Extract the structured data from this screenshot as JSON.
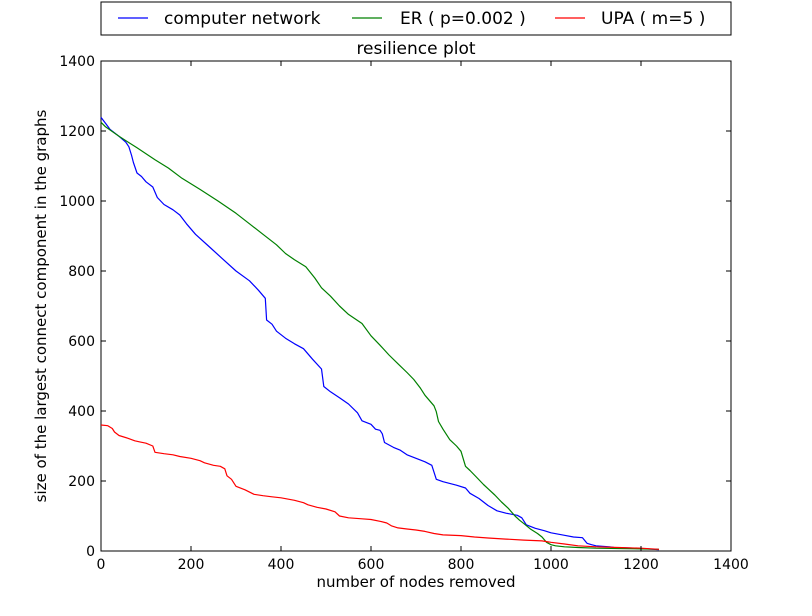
{
  "chart_data": {
    "type": "line",
    "title": "resilience plot",
    "xlabel": "number of nodes removed",
    "ylabel": "size of the largest connect component in the graphs",
    "xlim": [
      0,
      1400
    ],
    "ylim": [
      0,
      1400
    ],
    "xticks": [
      "0",
      "200",
      "400",
      "600",
      "800",
      "1000",
      "1200",
      "1400"
    ],
    "yticks": [
      "0",
      "200",
      "400",
      "600",
      "800",
      "1000",
      "1200",
      "1400"
    ],
    "grid": false,
    "legend_position": "top, above plot",
    "series": [
      {
        "name": "computer network",
        "color": "#0000ff",
        "points": [
          [
            0,
            1239
          ],
          [
            10,
            1222
          ],
          [
            20,
            1205
          ],
          [
            40,
            1185
          ],
          [
            55,
            1168
          ],
          [
            62,
            1155
          ],
          [
            68,
            1130
          ],
          [
            72,
            1110
          ],
          [
            80,
            1080
          ],
          [
            90,
            1070
          ],
          [
            100,
            1055
          ],
          [
            115,
            1040
          ],
          [
            125,
            1010
          ],
          [
            140,
            990
          ],
          [
            160,
            975
          ],
          [
            175,
            960
          ],
          [
            190,
            935
          ],
          [
            210,
            905
          ],
          [
            240,
            870
          ],
          [
            270,
            835
          ],
          [
            300,
            800
          ],
          [
            330,
            772
          ],
          [
            350,
            745
          ],
          [
            365,
            722
          ],
          [
            368,
            660
          ],
          [
            380,
            648
          ],
          [
            390,
            628
          ],
          [
            410,
            608
          ],
          [
            430,
            592
          ],
          [
            450,
            578
          ],
          [
            470,
            548
          ],
          [
            490,
            520
          ],
          [
            495,
            470
          ],
          [
            510,
            455
          ],
          [
            530,
            438
          ],
          [
            550,
            420
          ],
          [
            570,
            395
          ],
          [
            580,
            372
          ],
          [
            600,
            362
          ],
          [
            610,
            348
          ],
          [
            620,
            345
          ],
          [
            625,
            335
          ],
          [
            630,
            310
          ],
          [
            650,
            296
          ],
          [
            665,
            288
          ],
          [
            680,
            275
          ],
          [
            700,
            265
          ],
          [
            720,
            255
          ],
          [
            735,
            245
          ],
          [
            745,
            205
          ],
          [
            760,
            198
          ],
          [
            790,
            188
          ],
          [
            810,
            180
          ],
          [
            820,
            165
          ],
          [
            840,
            150
          ],
          [
            860,
            130
          ],
          [
            880,
            115
          ],
          [
            900,
            108
          ],
          [
            925,
            102
          ],
          [
            935,
            95
          ],
          [
            945,
            75
          ],
          [
            965,
            65
          ],
          [
            985,
            58
          ],
          [
            1000,
            52
          ],
          [
            1030,
            45
          ],
          [
            1050,
            40
          ],
          [
            1070,
            38
          ],
          [
            1080,
            22
          ],
          [
            1090,
            18
          ],
          [
            1100,
            15
          ],
          [
            1130,
            12
          ],
          [
            1140,
            10
          ],
          [
            1190,
            8
          ],
          [
            1240,
            4
          ]
        ]
      },
      {
        "name": "ER ( p=0.002 )",
        "color": "#008000",
        "points": [
          [
            0,
            1225
          ],
          [
            10,
            1212
          ],
          [
            40,
            1185
          ],
          [
            80,
            1152
          ],
          [
            120,
            1118
          ],
          [
            150,
            1094
          ],
          [
            180,
            1065
          ],
          [
            220,
            1033
          ],
          [
            260,
            1000
          ],
          [
            300,
            965
          ],
          [
            330,
            935
          ],
          [
            360,
            905
          ],
          [
            390,
            875
          ],
          [
            410,
            850
          ],
          [
            430,
            832
          ],
          [
            455,
            812
          ],
          [
            475,
            780
          ],
          [
            490,
            752
          ],
          [
            510,
            728
          ],
          [
            530,
            700
          ],
          [
            550,
            676
          ],
          [
            580,
            650
          ],
          [
            600,
            615
          ],
          [
            620,
            588
          ],
          [
            640,
            560
          ],
          [
            660,
            535
          ],
          [
            680,
            510
          ],
          [
            695,
            490
          ],
          [
            710,
            465
          ],
          [
            720,
            445
          ],
          [
            740,
            415
          ],
          [
            745,
            398
          ],
          [
            750,
            370
          ],
          [
            760,
            348
          ],
          [
            775,
            318
          ],
          [
            790,
            300
          ],
          [
            800,
            285
          ],
          [
            810,
            242
          ],
          [
            820,
            230
          ],
          [
            835,
            210
          ],
          [
            850,
            190
          ],
          [
            860,
            178
          ],
          [
            875,
            160
          ],
          [
            890,
            140
          ],
          [
            905,
            122
          ],
          [
            920,
            100
          ],
          [
            930,
            88
          ],
          [
            940,
            78
          ],
          [
            955,
            62
          ],
          [
            970,
            50
          ],
          [
            980,
            40
          ],
          [
            990,
            25
          ],
          [
            1000,
            18
          ],
          [
            1010,
            15
          ],
          [
            1030,
            12
          ],
          [
            1060,
            10
          ],
          [
            1100,
            8
          ],
          [
            1150,
            7
          ],
          [
            1200,
            6
          ],
          [
            1240,
            5
          ]
        ]
      },
      {
        "name": "UPA ( m=5 )",
        "color": "#ff0000",
        "points": [
          [
            0,
            360
          ],
          [
            15,
            358
          ],
          [
            25,
            350
          ],
          [
            30,
            340
          ],
          [
            40,
            330
          ],
          [
            60,
            322
          ],
          [
            75,
            315
          ],
          [
            85,
            312
          ],
          [
            100,
            308
          ],
          [
            115,
            300
          ],
          [
            120,
            282
          ],
          [
            140,
            278
          ],
          [
            160,
            275
          ],
          [
            175,
            270
          ],
          [
            200,
            265
          ],
          [
            220,
            258
          ],
          [
            230,
            252
          ],
          [
            250,
            245
          ],
          [
            265,
            242
          ],
          [
            275,
            235
          ],
          [
            280,
            215
          ],
          [
            290,
            205
          ],
          [
            300,
            185
          ],
          [
            320,
            175
          ],
          [
            340,
            162
          ],
          [
            360,
            158
          ],
          [
            380,
            155
          ],
          [
            400,
            152
          ],
          [
            430,
            145
          ],
          [
            450,
            138
          ],
          [
            460,
            132
          ],
          [
            480,
            125
          ],
          [
            500,
            120
          ],
          [
            520,
            112
          ],
          [
            530,
            100
          ],
          [
            550,
            95
          ],
          [
            580,
            92
          ],
          [
            600,
            90
          ],
          [
            620,
            85
          ],
          [
            635,
            80
          ],
          [
            645,
            72
          ],
          [
            660,
            66
          ],
          [
            680,
            63
          ],
          [
            700,
            60
          ],
          [
            720,
            56
          ],
          [
            740,
            50
          ],
          [
            760,
            46
          ],
          [
            800,
            44
          ],
          [
            830,
            40
          ],
          [
            860,
            37
          ],
          [
            900,
            34
          ],
          [
            940,
            31
          ],
          [
            980,
            29
          ],
          [
            1000,
            25
          ],
          [
            1030,
            20
          ],
          [
            1060,
            15
          ],
          [
            1100,
            12
          ],
          [
            1150,
            10
          ],
          [
            1200,
            8
          ],
          [
            1240,
            5
          ]
        ]
      }
    ]
  }
}
